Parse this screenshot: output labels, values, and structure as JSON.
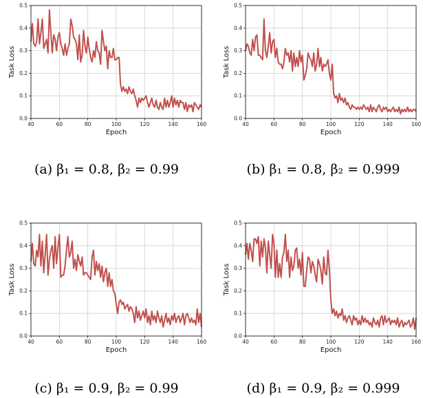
{
  "panels": [
    {
      "id": "a",
      "caption": "(a) β₁ = 0.8,  β₂ = 0.99"
    },
    {
      "id": "b",
      "caption": "(b) β₁ = 0.8,  β₂ = 0.999"
    },
    {
      "id": "c",
      "caption": "(c) β₁ = 0.9,  β₂ = 0.99"
    },
    {
      "id": "d",
      "caption": "(d) β₁ = 0.9,  β₂ = 0.999"
    }
  ],
  "line_color": "#c0504d",
  "chart_data": [
    {
      "type": "line",
      "xlabel": "Epoch",
      "ylabel": "Task Loss",
      "xlim": [
        40,
        160
      ],
      "ylim": [
        0.0,
        0.5
      ],
      "xticks": [
        40,
        60,
        80,
        100,
        120,
        140,
        160
      ],
      "yticks": [
        0.0,
        0.1,
        0.2,
        0.3,
        0.4,
        0.5
      ],
      "grid": true,
      "series": [
        {
          "x": [
            40,
            41,
            42,
            43,
            44,
            45,
            46,
            47,
            48,
            49,
            50,
            51,
            52,
            53,
            54,
            55,
            56,
            57,
            58,
            59,
            60,
            61,
            62,
            63,
            64,
            65,
            66,
            67,
            68,
            69,
            70,
            71,
            72,
            73,
            74,
            75,
            76,
            77,
            78,
            79,
            80,
            81,
            82,
            83,
            84,
            85,
            86,
            87,
            88,
            89,
            90,
            91,
            92,
            93,
            94,
            95,
            96,
            97,
            98,
            99,
            100,
            101,
            102,
            103,
            104,
            105,
            106,
            107,
            108,
            109,
            110,
            111,
            112,
            113,
            114,
            115,
            116,
            117,
            118,
            119,
            120,
            121,
            122,
            123,
            124,
            125,
            126,
            127,
            128,
            129,
            130,
            131,
            132,
            133,
            134,
            135,
            136,
            137,
            138,
            139,
            140,
            141,
            142,
            143,
            144,
            145,
            146,
            147,
            148,
            149,
            150,
            151,
            152,
            153,
            154,
            155,
            156,
            157,
            158,
            159,
            160
          ],
          "y": [
            0.34,
            0.42,
            0.33,
            0.32,
            0.34,
            0.44,
            0.33,
            0.38,
            0.44,
            0.31,
            0.33,
            0.35,
            0.29,
            0.48,
            0.38,
            0.29,
            0.37,
            0.35,
            0.3,
            0.36,
            0.38,
            0.33,
            0.31,
            0.28,
            0.33,
            0.28,
            0.31,
            0.33,
            0.44,
            0.41,
            0.36,
            0.35,
            0.33,
            0.26,
            0.37,
            0.25,
            0.28,
            0.39,
            0.32,
            0.29,
            0.36,
            0.31,
            0.27,
            0.25,
            0.3,
            0.27,
            0.34,
            0.3,
            0.29,
            0.24,
            0.39,
            0.34,
            0.3,
            0.32,
            0.22,
            0.3,
            0.27,
            0.27,
            0.31,
            0.26,
            0.26,
            0.27,
            0.27,
            0.15,
            0.12,
            0.14,
            0.12,
            0.13,
            0.11,
            0.14,
            0.12,
            0.11,
            0.13,
            0.1,
            0.08,
            0.05,
            0.09,
            0.07,
            0.09,
            0.08,
            0.09,
            0.1,
            0.07,
            0.05,
            0.07,
            0.09,
            0.06,
            0.05,
            0.08,
            0.05,
            0.04,
            0.07,
            0.05,
            0.04,
            0.09,
            0.05,
            0.08,
            0.05,
            0.07,
            0.1,
            0.05,
            0.09,
            0.06,
            0.08,
            0.05,
            0.08,
            0.07,
            0.07,
            0.04,
            0.07,
            0.03,
            0.06,
            0.05,
            0.06,
            0.03,
            0.07,
            0.06,
            0.05,
            0.04,
            0.06,
            0.05
          ]
        }
      ]
    },
    {
      "type": "line",
      "xlabel": "Epoch",
      "ylabel": "Task Loss",
      "xlim": [
        40,
        160
      ],
      "ylim": [
        0.0,
        0.5
      ],
      "xticks": [
        40,
        60,
        80,
        100,
        120,
        140,
        160
      ],
      "yticks": [
        0.0,
        0.1,
        0.2,
        0.3,
        0.4,
        0.5
      ],
      "grid": true,
      "series": [
        {
          "x": [
            40,
            41,
            42,
            43,
            44,
            45,
            46,
            47,
            48,
            49,
            50,
            51,
            52,
            53,
            54,
            55,
            56,
            57,
            58,
            59,
            60,
            61,
            62,
            63,
            64,
            65,
            66,
            67,
            68,
            69,
            70,
            71,
            72,
            73,
            74,
            75,
            76,
            77,
            78,
            79,
            80,
            81,
            82,
            83,
            84,
            85,
            86,
            87,
            88,
            89,
            90,
            91,
            92,
            93,
            94,
            95,
            96,
            97,
            98,
            99,
            100,
            101,
            102,
            103,
            104,
            105,
            106,
            107,
            108,
            109,
            110,
            111,
            112,
            113,
            114,
            115,
            116,
            117,
            118,
            119,
            120,
            121,
            122,
            123,
            124,
            125,
            126,
            127,
            128,
            129,
            130,
            131,
            132,
            133,
            134,
            135,
            136,
            137,
            138,
            139,
            140,
            141,
            142,
            143,
            144,
            145,
            146,
            147,
            148,
            149,
            150,
            151,
            152,
            153,
            154,
            155,
            156,
            157,
            158,
            159,
            160
          ],
          "y": [
            0.3,
            0.33,
            0.32,
            0.29,
            0.28,
            0.35,
            0.3,
            0.36,
            0.37,
            0.28,
            0.28,
            0.27,
            0.26,
            0.44,
            0.3,
            0.27,
            0.32,
            0.38,
            0.29,
            0.34,
            0.35,
            0.27,
            0.31,
            0.25,
            0.24,
            0.24,
            0.22,
            0.25,
            0.31,
            0.28,
            0.29,
            0.25,
            0.3,
            0.21,
            0.29,
            0.23,
            0.27,
            0.23,
            0.3,
            0.25,
            0.28,
            0.17,
            0.19,
            0.22,
            0.29,
            0.27,
            0.26,
            0.23,
            0.29,
            0.21,
            0.24,
            0.31,
            0.23,
            0.27,
            0.21,
            0.24,
            0.23,
            0.24,
            0.26,
            0.2,
            0.17,
            0.24,
            0.11,
            0.09,
            0.1,
            0.07,
            0.11,
            0.08,
            0.09,
            0.07,
            0.09,
            0.06,
            0.07,
            0.05,
            0.04,
            0.06,
            0.05,
            0.05,
            0.04,
            0.05,
            0.04,
            0.05,
            0.04,
            0.06,
            0.05,
            0.04,
            0.05,
            0.03,
            0.06,
            0.03,
            0.05,
            0.04,
            0.03,
            0.05,
            0.06,
            0.04,
            0.03,
            0.05,
            0.04,
            0.05,
            0.03,
            0.04,
            0.03,
            0.04,
            0.05,
            0.03,
            0.04,
            0.03,
            0.05,
            0.02,
            0.04,
            0.03,
            0.04,
            0.03,
            0.05,
            0.03,
            0.04,
            0.03,
            0.04,
            0.04,
            0.03
          ]
        }
      ]
    },
    {
      "type": "line",
      "xlabel": "Epoch",
      "ylabel": "Task Loss",
      "xlim": [
        40,
        160
      ],
      "ylim": [
        0.0,
        0.5
      ],
      "xticks": [
        40,
        60,
        80,
        100,
        120,
        140,
        160
      ],
      "yticks": [
        0.0,
        0.1,
        0.2,
        0.3,
        0.4,
        0.5
      ],
      "grid": true,
      "series": [
        {
          "x": [
            40,
            41,
            42,
            43,
            44,
            45,
            46,
            47,
            48,
            49,
            50,
            51,
            52,
            53,
            54,
            55,
            56,
            57,
            58,
            59,
            60,
            61,
            62,
            63,
            64,
            65,
            66,
            67,
            68,
            69,
            70,
            71,
            72,
            73,
            74,
            75,
            76,
            77,
            78,
            79,
            80,
            81,
            82,
            83,
            84,
            85,
            86,
            87,
            88,
            89,
            90,
            91,
            92,
            93,
            94,
            95,
            96,
            97,
            98,
            99,
            100,
            101,
            102,
            103,
            104,
            105,
            106,
            107,
            108,
            109,
            110,
            111,
            112,
            113,
            114,
            115,
            116,
            117,
            118,
            119,
            120,
            121,
            122,
            123,
            124,
            125,
            126,
            127,
            128,
            129,
            130,
            131,
            132,
            133,
            134,
            135,
            136,
            137,
            138,
            139,
            140,
            141,
            142,
            143,
            144,
            145,
            146,
            147,
            148,
            149,
            150,
            151,
            152,
            153,
            154,
            155,
            156,
            157,
            158,
            159,
            160
          ],
          "y": [
            0.33,
            0.41,
            0.32,
            0.31,
            0.38,
            0.35,
            0.45,
            0.31,
            0.42,
            0.28,
            0.36,
            0.45,
            0.27,
            0.34,
            0.38,
            0.4,
            0.3,
            0.44,
            0.32,
            0.39,
            0.45,
            0.26,
            0.27,
            0.27,
            0.31,
            0.38,
            0.44,
            0.35,
            0.37,
            0.42,
            0.3,
            0.34,
            0.29,
            0.36,
            0.33,
            0.31,
            0.35,
            0.27,
            0.28,
            0.28,
            0.27,
            0.26,
            0.25,
            0.35,
            0.38,
            0.27,
            0.33,
            0.29,
            0.32,
            0.26,
            0.31,
            0.24,
            0.28,
            0.3,
            0.22,
            0.28,
            0.22,
            0.25,
            0.2,
            0.19,
            0.14,
            0.1,
            0.15,
            0.16,
            0.14,
            0.15,
            0.12,
            0.13,
            0.14,
            0.11,
            0.13,
            0.12,
            0.1,
            0.06,
            0.13,
            0.08,
            0.11,
            0.07,
            0.09,
            0.11,
            0.08,
            0.12,
            0.06,
            0.09,
            0.05,
            0.11,
            0.07,
            0.09,
            0.06,
            0.11,
            0.08,
            0.06,
            0.09,
            0.04,
            0.07,
            0.1,
            0.06,
            0.08,
            0.05,
            0.09,
            0.07,
            0.1,
            0.06,
            0.08,
            0.09,
            0.06,
            0.08,
            0.1,
            0.05,
            0.09,
            0.1,
            0.08,
            0.06,
            0.08,
            0.06,
            0.07,
            0.05,
            0.12,
            0.06,
            0.1,
            0.04
          ]
        }
      ]
    },
    {
      "type": "line",
      "xlabel": "Epoch",
      "ylabel": "Task Loss",
      "xlim": [
        40,
        160
      ],
      "ylim": [
        0.0,
        0.5
      ],
      "xticks": [
        40,
        60,
        80,
        100,
        120,
        140,
        160
      ],
      "yticks": [
        0.0,
        0.1,
        0.2,
        0.3,
        0.4,
        0.5
      ],
      "grid": true,
      "series": [
        {
          "x": [
            40,
            41,
            42,
            43,
            44,
            45,
            46,
            47,
            48,
            49,
            50,
            51,
            52,
            53,
            54,
            55,
            56,
            57,
            58,
            59,
            60,
            61,
            62,
            63,
            64,
            65,
            66,
            67,
            68,
            69,
            70,
            71,
            72,
            73,
            74,
            75,
            76,
            77,
            78,
            79,
            80,
            81,
            82,
            83,
            84,
            85,
            86,
            87,
            88,
            89,
            90,
            91,
            92,
            93,
            94,
            95,
            96,
            97,
            98,
            99,
            100,
            101,
            102,
            103,
            104,
            105,
            106,
            107,
            108,
            109,
            110,
            111,
            112,
            113,
            114,
            115,
            116,
            117,
            118,
            119,
            120,
            121,
            122,
            123,
            124,
            125,
            126,
            127,
            128,
            129,
            130,
            131,
            132,
            133,
            134,
            135,
            136,
            137,
            138,
            139,
            140,
            141,
            142,
            143,
            144,
            145,
            146,
            147,
            148,
            149,
            150,
            151,
            152,
            153,
            154,
            155,
            156,
            157,
            158,
            159,
            160
          ],
          "y": [
            0.36,
            0.41,
            0.34,
            0.41,
            0.38,
            0.33,
            0.43,
            0.43,
            0.41,
            0.44,
            0.31,
            0.42,
            0.35,
            0.43,
            0.39,
            0.28,
            0.42,
            0.36,
            0.3,
            0.45,
            0.41,
            0.26,
            0.38,
            0.26,
            0.32,
            0.26,
            0.35,
            0.37,
            0.45,
            0.33,
            0.38,
            0.26,
            0.35,
            0.29,
            0.31,
            0.38,
            0.39,
            0.3,
            0.34,
            0.27,
            0.37,
            0.22,
            0.22,
            0.29,
            0.35,
            0.34,
            0.28,
            0.33,
            0.31,
            0.27,
            0.24,
            0.34,
            0.32,
            0.29,
            0.23,
            0.35,
            0.28,
            0.27,
            0.38,
            0.29,
            0.16,
            0.1,
            0.12,
            0.09,
            0.11,
            0.08,
            0.1,
            0.09,
            0.12,
            0.07,
            0.09,
            0.06,
            0.08,
            0.09,
            0.07,
            0.05,
            0.09,
            0.07,
            0.08,
            0.05,
            0.07,
            0.05,
            0.09,
            0.06,
            0.08,
            0.06,
            0.07,
            0.05,
            0.06,
            0.04,
            0.08,
            0.06,
            0.05,
            0.07,
            0.04,
            0.08,
            0.09,
            0.05,
            0.09,
            0.06,
            0.07,
            0.08,
            0.05,
            0.07,
            0.06,
            0.07,
            0.05,
            0.08,
            0.04,
            0.06,
            0.07,
            0.04,
            0.06,
            0.05,
            0.06,
            0.07,
            0.04,
            0.05,
            0.08,
            0.03,
            0.08
          ]
        }
      ]
    }
  ]
}
